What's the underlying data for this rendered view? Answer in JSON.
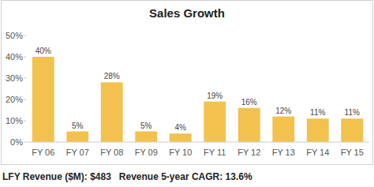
{
  "chart_data": {
    "type": "bar",
    "title": "Sales Growth",
    "categories": [
      "FY 06",
      "FY 07",
      "FY 08",
      "FY 09",
      "FY 10",
      "FY 11",
      "FY 12",
      "FY 13",
      "FY 14",
      "FY 15"
    ],
    "values": [
      40,
      5,
      28,
      5,
      4,
      19,
      16,
      12,
      11,
      11
    ],
    "value_labels": [
      "40%",
      "5%",
      "28%",
      "5%",
      "4%",
      "19%",
      "16%",
      "12%",
      "11%",
      "11%"
    ],
    "color": "#f2c14e",
    "ylim": [
      0,
      50
    ],
    "yticks": [
      {
        "value": 0,
        "label": "0%"
      },
      {
        "value": 10,
        "label": "10%"
      },
      {
        "value": 20,
        "label": "20%"
      },
      {
        "value": 30,
        "label": "30%"
      },
      {
        "value": 40,
        "label": "40%"
      },
      {
        "value": 50,
        "label": "50%"
      }
    ],
    "grid": false,
    "data_labels": true,
    "annotations": [
      "LFY Revenue ($M): $483",
      "Revenue 5-year CAGR: 13.6%"
    ]
  }
}
